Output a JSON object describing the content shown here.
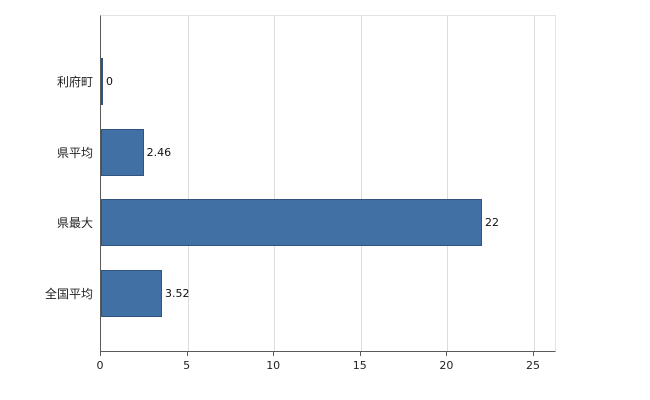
{
  "chart_data": {
    "type": "bar",
    "orientation": "horizontal",
    "title": "",
    "xlabel": "",
    "ylabel": "",
    "categories": [
      "利府町",
      "県平均",
      "県最大",
      "全国平均"
    ],
    "values": [
      0,
      2.46,
      22,
      3.52
    ],
    "value_labels": [
      "0",
      "2.46",
      "22",
      "3.52"
    ],
    "xlim": [
      0,
      25
    ],
    "xticks": [
      0,
      5,
      10,
      15,
      20,
      25
    ],
    "grid": true,
    "legend": "none",
    "bar_color": "#4170a4",
    "bar_border_color": "#2f5580",
    "gridline_color": "#dcdcdc",
    "axis_color": "#5a5a5a",
    "background_color": "#ffffff"
  }
}
